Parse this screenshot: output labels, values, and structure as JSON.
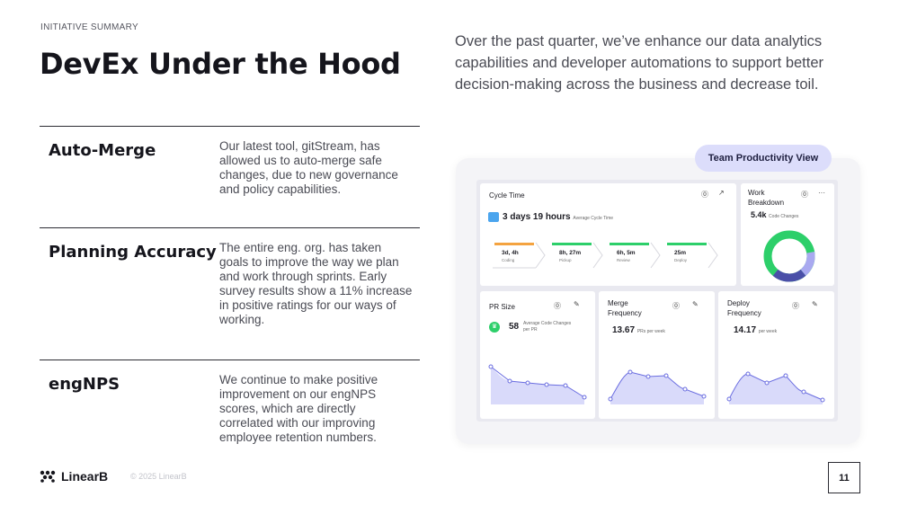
{
  "eyebrow": "INITIATIVE SUMMARY",
  "title": "DevEx Under the Hood",
  "intro": "Over the past quarter, we’ve enhance our data analytics capabilities and developer automations to support better decision-making across the business and decrease toil.",
  "rows": [
    {
      "label": "Auto-Merge",
      "desc": "Our latest tool, gitStream, has allowed us to auto-merge safe changes, due to new governance and policy capabilities."
    },
    {
      "label": "Planning Accuracy",
      "desc": "The entire eng. org. has taken goals to improve the way we plan and work through sprints. Early survey results show a 11% increase in positive ratings for our ways of working."
    },
    {
      "label": "engNPS",
      "desc": "We continue to make positive improvement on our engNPS scores, which are directly correlated with our improving employee retention numbers."
    }
  ],
  "footer": {
    "brand": "LinearB",
    "copyright": "© 2025 LinearB",
    "page": "11"
  },
  "dashboard": {
    "pill": "Team Productivity View",
    "cycle": {
      "title": "Cycle Time",
      "value": "3 days 19 hours",
      "caption": "Average Cycle Time",
      "stages": [
        {
          "value": "3d, 4h",
          "name": "Coding",
          "color": "#f4a340"
        },
        {
          "value": "8h, 27m",
          "name": "Pickup",
          "color": "#2dcf6a"
        },
        {
          "value": "6h, 5m",
          "name": "Review",
          "color": "#2dcf6a"
        },
        {
          "value": "25m",
          "name": "Deploy",
          "color": "#2dcf6a"
        }
      ]
    },
    "work": {
      "title_1": "Work",
      "title_2": "Breakdown",
      "value": "5.4k",
      "caption": "Code Changes",
      "more": "···"
    },
    "pr": {
      "title": "PR Size",
      "value": "58",
      "caption_1": "Average Code Changes",
      "caption_2": "per PR"
    },
    "merge": {
      "title_1": "Merge",
      "title_2": "Frequency",
      "value": "13.67",
      "caption": "PRs per week"
    },
    "deploy": {
      "title_1": "Deploy",
      "title_2": "Frequency",
      "value": "14.17",
      "caption": "per week"
    }
  },
  "colors": {
    "accent": "#6a6de0",
    "area": "#c9caf8",
    "green": "#2dcf6a",
    "navy": "#4a4fa8",
    "lavender": "#a9a9f0"
  }
}
